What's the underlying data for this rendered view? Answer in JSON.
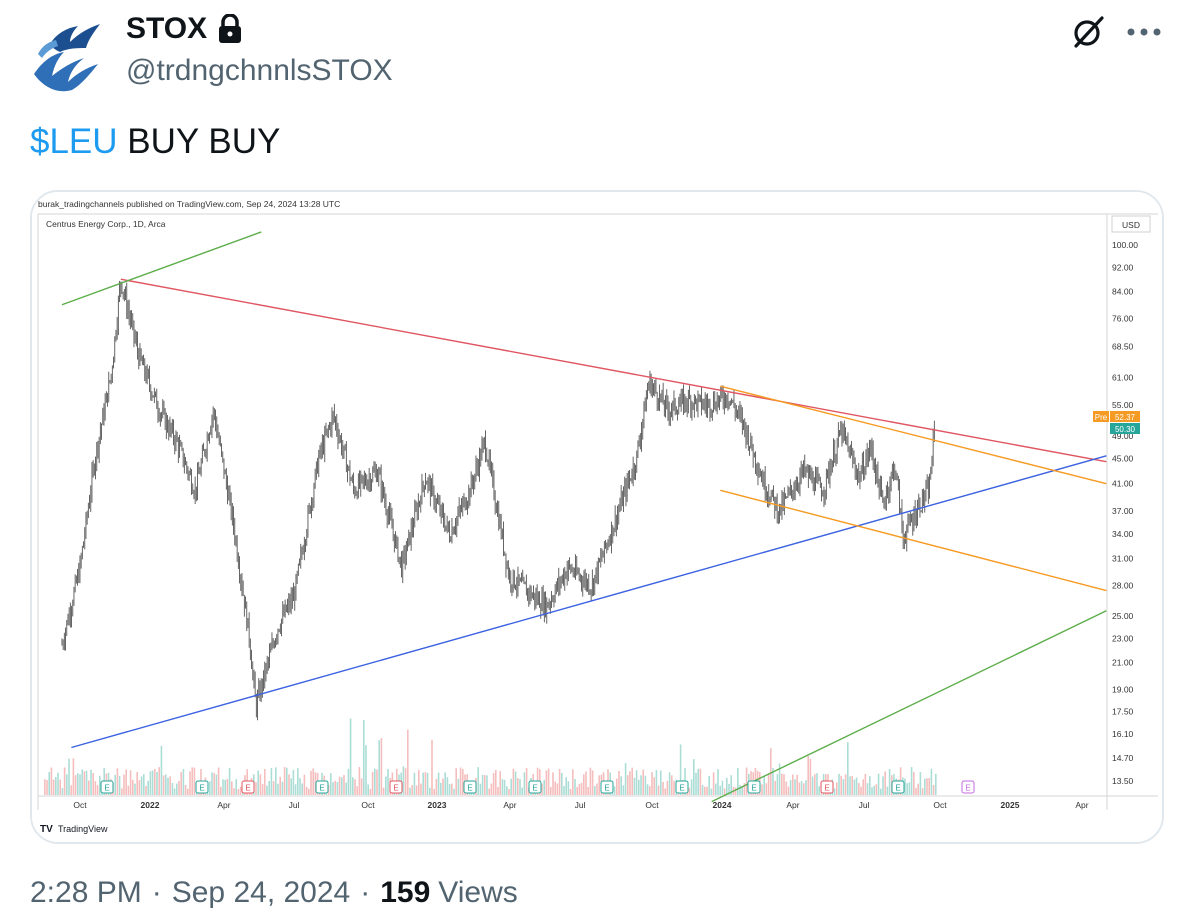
{
  "tweet": {
    "display_name": "STOX",
    "handle": "@trdngchnnlsSTOX",
    "cashtag": "$LEU",
    "text_rest": " BUY BUY",
    "time": "2:28 PM",
    "date": "Sep 24, 2024",
    "views_count": "159",
    "views_label": "Views",
    "separator": "·"
  },
  "icons": {
    "avatar": "pegasus-logo",
    "lock": "lock-icon",
    "grok": "grok-icon",
    "more": "more-icon"
  },
  "colors": {
    "cashtag": "#1d9bf0",
    "red_line": "#e05560",
    "blue_line": "#3b62e0",
    "green_line": "#5cad4a",
    "orange_line": "#f59a23",
    "candle": "#555555"
  },
  "chart_header": {
    "published": "burak_tradingchannels published on TradingView.com, Sep 24, 2024 13:28 UTC",
    "symbol": "Centrus Energy Corp., 1D, Arca",
    "currency": "USD",
    "pre_label": "Pre",
    "pre_value": "52.37",
    "last_value": "50.30",
    "watermark": "TradingView"
  },
  "chart_data": {
    "type": "line",
    "title": "",
    "x_labels": [
      "Oct",
      "2022",
      "Apr",
      "Jul",
      "Oct",
      "2023",
      "Apr",
      "Jul",
      "Oct",
      "2024",
      "Apr",
      "Jul",
      "Oct",
      "2025",
      "Apr"
    ],
    "y_labels": [
      "100.00",
      "92.00",
      "84.00",
      "76.00",
      "68.50",
      "61.00",
      "55.00",
      "49.00",
      "45.00",
      "41.00",
      "37.00",
      "34.00",
      "31.00",
      "28.00",
      "25.00",
      "23.00",
      "21.00",
      "19.00",
      "17.50",
      "16.10",
      "14.70",
      "13.50"
    ],
    "y_scale": "log",
    "series": [
      {
        "x": [
          "2021-09-08",
          "2021-10-01",
          "2021-10-20",
          "2021-11-10",
          "2021-11-22",
          "2021-12-15",
          "2022-01-10",
          "2022-02-01",
          "2022-02-25",
          "2022-03-20",
          "2022-04-15",
          "2022-05-05",
          "2022-05-13",
          "2022-06-10",
          "2022-07-01",
          "2022-08-01",
          "2022-08-20",
          "2022-09-15",
          "2022-10-15",
          "2022-11-15",
          "2022-12-15",
          "2023-01-15",
          "2023-02-10",
          "2023-03-01",
          "2023-04-01",
          "2023-05-01",
          "2023-05-19",
          "2023-06-15",
          "2023-07-15",
          "2023-08-15",
          "2023-09-10",
          "2023-09-26",
          "2023-10-20",
          "2023-11-15",
          "2023-12-10",
          "2024-01-05",
          "2024-01-25",
          "2024-02-20",
          "2024-03-10",
          "2024-04-10",
          "2024-05-05",
          "2024-05-28",
          "2024-06-20",
          "2024-07-05",
          "2024-07-20",
          "2024-08-05",
          "2024-08-15",
          "2024-09-05",
          "2024-09-17",
          "2024-09-24"
        ],
        "values": [
          22.5,
          30,
          45,
          62,
          88,
          66,
          54,
          48,
          40,
          54,
          35,
          23,
          17.8,
          24,
          27,
          45,
          53,
          40,
          43,
          30,
          42,
          34,
          40,
          48,
          29,
          27,
          26,
          30,
          28,
          36,
          45,
          60,
          54,
          56,
          55,
          57,
          51,
          41,
          37,
          43,
          40,
          50,
          42,
          47,
          38,
          44,
          33.5,
          38,
          40,
          50.3
        ]
      }
    ],
    "trendlines": [
      {
        "color": "red",
        "from": [
          "2021-11-22",
          88
        ],
        "to": [
          "2025-05-01",
          44.5
        ]
      },
      {
        "color": "blue",
        "from": [
          "2021-09-20",
          15.3
        ],
        "to": [
          "2025-05-01",
          45.5
        ]
      },
      {
        "color": "green",
        "from": [
          "2021-09-08",
          80
        ],
        "to": [
          "2022-05-20",
          105
        ]
      },
      {
        "color": "green",
        "from": [
          "2023-12-15",
          12.5
        ],
        "to": [
          "2025-05-01",
          25.5
        ]
      },
      {
        "color": "orange",
        "from": [
          "2023-12-26",
          59
        ],
        "to": [
          "2025-05-01",
          41
        ]
      },
      {
        "color": "orange",
        "from": [
          "2023-12-26",
          40
        ],
        "to": [
          "2025-05-01",
          27.5
        ]
      }
    ],
    "volume": "shown",
    "earnings_markers": [
      "E",
      "E",
      "E",
      "E",
      "E",
      "E",
      "E",
      "E",
      "E",
      "E",
      "E",
      "E"
    ],
    "grid": false,
    "legend": "none"
  }
}
